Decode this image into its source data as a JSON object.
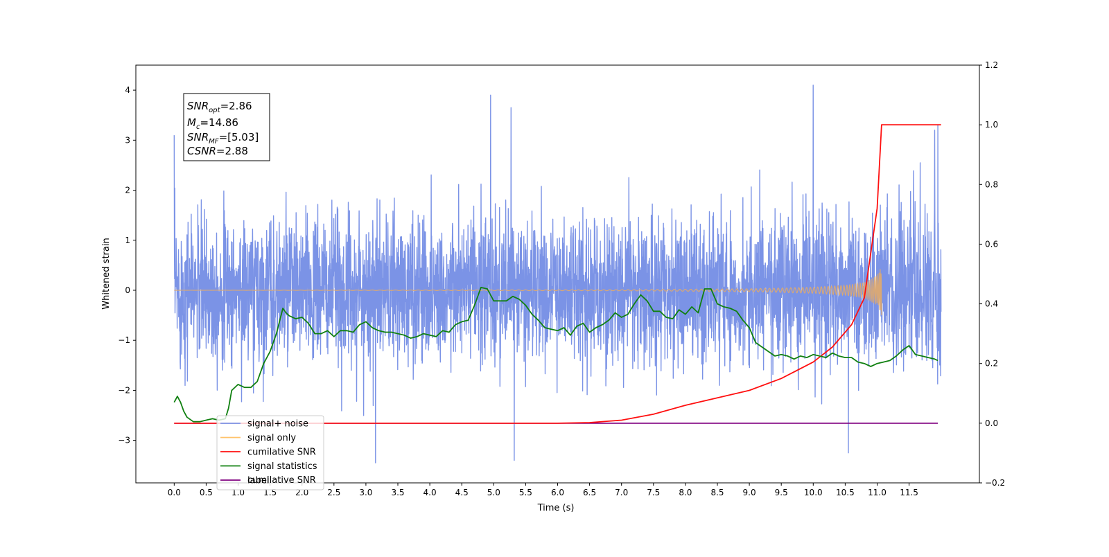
{
  "chart_data": {
    "type": "line",
    "xlabel": "Time (s)",
    "ylabel": "Whitened strain",
    "xlim": [
      -0.6,
      12.6
    ],
    "ylim": [
      -3.85,
      4.5
    ],
    "y2lim": [
      -0.2,
      1.2
    ],
    "x_ticks": [
      "0.0",
      "0.5",
      "1.0",
      "1.5",
      "2.0",
      "2.5",
      "3.0",
      "3.5",
      "4.0",
      "4.5",
      "5.0",
      "5.5",
      "6.0",
      "6.5",
      "7.0",
      "7.5",
      "8.0",
      "8.5",
      "9.0",
      "9.5",
      "10.0",
      "10.5",
      "11.0",
      "11.5"
    ],
    "y_ticks": [
      "−3",
      "−2",
      "−1",
      "0",
      "1",
      "2",
      "3",
      "4"
    ],
    "y2_ticks": [
      "−0.2",
      "0.0",
      "0.2",
      "0.4",
      "0.6",
      "0.8",
      "1.0",
      "1.2"
    ],
    "annotation": {
      "snr_opt": "=2.86",
      "mc": "=14.86",
      "snr_mf": "=[5.03]",
      "csnr": "=2.88"
    },
    "legend": {
      "placement": "lower-left",
      "items": [
        {
          "label": "signal+ noise",
          "color": "#7b93e6"
        },
        {
          "label": "signal only",
          "color": "#ffc36b"
        },
        {
          "label": "cumilative SNR",
          "color": "#ff1010"
        },
        {
          "label": "signal statistics",
          "color": "#108010"
        },
        {
          "label": "label",
          "color": "#800080"
        }
      ],
      "hidden_text": "cumilative SNR"
    },
    "series": [
      {
        "name": "signal+ noise",
        "axis": "left",
        "color": "#7b93e6",
        "x_range": [
          0,
          12
        ],
        "envelope": {
          "typical_min": -1.8,
          "typical_max": 1.8,
          "max": 4.1,
          "min": -3.45
        },
        "peaks": [
          [
            0.0,
            3.1
          ],
          [
            4.95,
            3.9
          ],
          [
            5.27,
            3.65
          ],
          [
            10.0,
            4.1
          ],
          [
            11.9,
            3.2
          ],
          [
            11.95,
            3.3
          ],
          [
            3.15,
            -3.45
          ],
          [
            5.32,
            -3.4
          ],
          [
            10.55,
            -3.25
          ]
        ]
      },
      {
        "name": "signal only",
        "axis": "left",
        "color": "#d8a877",
        "x_range": [
          0,
          11.07
        ],
        "amplitude_points": [
          [
            0,
            0.0
          ],
          [
            7.0,
            0.01
          ],
          [
            9.0,
            0.03
          ],
          [
            10.0,
            0.06
          ],
          [
            10.5,
            0.1
          ],
          [
            10.8,
            0.16
          ],
          [
            11.0,
            0.3
          ],
          [
            11.07,
            0.5
          ]
        ]
      },
      {
        "name": "cumilative SNR",
        "axis": "right",
        "color": "#ff1010",
        "x": [
          0,
          6.0,
          6.5,
          7.0,
          7.5,
          8.0,
          8.5,
          9.0,
          9.5,
          10.0,
          10.3,
          10.6,
          10.8,
          11.0,
          11.07,
          11.1,
          12.0
        ],
        "y": [
          0,
          0,
          0.002,
          0.01,
          0.03,
          0.06,
          0.085,
          0.11,
          0.15,
          0.205,
          0.255,
          0.33,
          0.42,
          0.72,
          1.0,
          1.0,
          1.0
        ]
      },
      {
        "name": "signal statistics",
        "axis": "right",
        "color": "#108010",
        "x": [
          0,
          0.05,
          0.1,
          0.15,
          0.2,
          0.3,
          0.4,
          0.5,
          0.6,
          0.7,
          0.8,
          0.85,
          0.9,
          1.0,
          1.1,
          1.2,
          1.3,
          1.4,
          1.5,
          1.6,
          1.7,
          1.75,
          1.8,
          1.9,
          2.0,
          2.1,
          2.2,
          2.3,
          2.4,
          2.5,
          2.6,
          2.7,
          2.8,
          2.9,
          3.0,
          3.1,
          3.2,
          3.3,
          3.4,
          3.5,
          3.6,
          3.7,
          3.8,
          3.9,
          4.0,
          4.1,
          4.2,
          4.3,
          4.4,
          4.5,
          4.6,
          4.7,
          4.8,
          4.9,
          5.0,
          5.1,
          5.2,
          5.3,
          5.4,
          5.5,
          5.6,
          5.7,
          5.8,
          5.9,
          6.0,
          6.1,
          6.2,
          6.3,
          6.4,
          6.5,
          6.6,
          6.7,
          6.8,
          6.9,
          7.0,
          7.1,
          7.2,
          7.3,
          7.4,
          7.5,
          7.6,
          7.7,
          7.8,
          7.9,
          8.0,
          8.1,
          8.2,
          8.3,
          8.4,
          8.5,
          8.6,
          8.7,
          8.8,
          8.9,
          9.0,
          9.1,
          9.2,
          9.3,
          9.4,
          9.5,
          9.6,
          9.7,
          9.8,
          9.9,
          10.0,
          10.1,
          10.2,
          10.3,
          10.4,
          10.5,
          10.6,
          10.7,
          10.8,
          10.9,
          11.0,
          11.1,
          11.2,
          11.3,
          11.4,
          11.5,
          11.6,
          11.7,
          11.8,
          11.9,
          11.95
        ],
        "y": [
          0.07,
          0.09,
          0.07,
          0.04,
          0.02,
          0.005,
          0.005,
          0.01,
          0.015,
          0.01,
          0.015,
          0.05,
          0.11,
          0.13,
          0.12,
          0.12,
          0.14,
          0.2,
          0.24,
          0.3,
          0.385,
          0.37,
          0.36,
          0.35,
          0.355,
          0.335,
          0.3,
          0.3,
          0.31,
          0.29,
          0.31,
          0.31,
          0.305,
          0.33,
          0.34,
          0.32,
          0.31,
          0.305,
          0.305,
          0.3,
          0.295,
          0.285,
          0.29,
          0.3,
          0.295,
          0.29,
          0.31,
          0.305,
          0.33,
          0.34,
          0.345,
          0.395,
          0.455,
          0.45,
          0.41,
          0.41,
          0.41,
          0.425,
          0.415,
          0.395,
          0.365,
          0.345,
          0.32,
          0.315,
          0.31,
          0.32,
          0.295,
          0.325,
          0.335,
          0.305,
          0.32,
          0.33,
          0.345,
          0.37,
          0.355,
          0.365,
          0.4,
          0.43,
          0.41,
          0.375,
          0.375,
          0.355,
          0.35,
          0.38,
          0.365,
          0.39,
          0.37,
          0.45,
          0.45,
          0.4,
          0.39,
          0.385,
          0.375,
          0.345,
          0.32,
          0.27,
          0.255,
          0.24,
          0.225,
          0.23,
          0.225,
          0.215,
          0.225,
          0.22,
          0.23,
          0.225,
          0.22,
          0.235,
          0.225,
          0.22,
          0.22,
          0.205,
          0.2,
          0.19,
          0.2,
          0.205,
          0.21,
          0.225,
          0.245,
          0.26,
          0.23,
          0.225,
          0.22,
          0.215,
          0.21
        ]
      },
      {
        "name": "label",
        "axis": "right",
        "color": "#800080",
        "x": [
          0,
          11.95
        ],
        "y": [
          0,
          0
        ]
      }
    ]
  }
}
